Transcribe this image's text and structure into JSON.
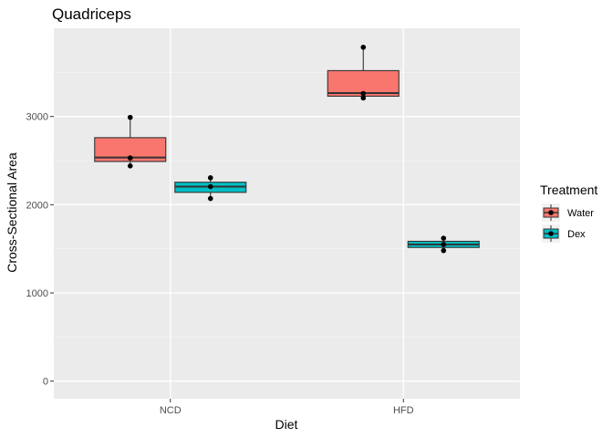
{
  "chart_data": {
    "type": "box",
    "title": "Quadriceps",
    "xlabel": "Diet",
    "ylabel": "Cross-Sectional Area",
    "categories": [
      "NCD",
      "HFD"
    ],
    "ylim": [
      -200,
      4000
    ],
    "yticks": [
      0,
      1000,
      2000,
      3000
    ],
    "grid": true,
    "legend": {
      "title": "Treatment",
      "position": "right"
    },
    "series": [
      {
        "name": "Water",
        "color": "#f8766d",
        "boxes": [
          {
            "category": "NCD",
            "q1": 2490,
            "median": 2535,
            "q3": 2760,
            "whisker_low": 2440,
            "whisker_high": 2990,
            "points": [
              2990,
              2530,
              2440
            ]
          },
          {
            "category": "HFD",
            "q1": 3230,
            "median": 3265,
            "q3": 3520,
            "whisker_low": 3210,
            "whisker_high": 3785,
            "points": [
              3785,
              3260,
              3210
            ]
          }
        ]
      },
      {
        "name": "Dex",
        "color": "#00bfc4",
        "boxes": [
          {
            "category": "NCD",
            "q1": 2140,
            "median": 2205,
            "q3": 2255,
            "whisker_low": 2070,
            "whisker_high": 2305,
            "points": [
              2305,
              2205,
              2070
            ]
          },
          {
            "category": "HFD",
            "q1": 1515,
            "median": 1550,
            "q3": 1585,
            "whisker_low": 1480,
            "whisker_high": 1620,
            "points": [
              1620,
              1550,
              1480
            ]
          }
        ]
      }
    ]
  }
}
